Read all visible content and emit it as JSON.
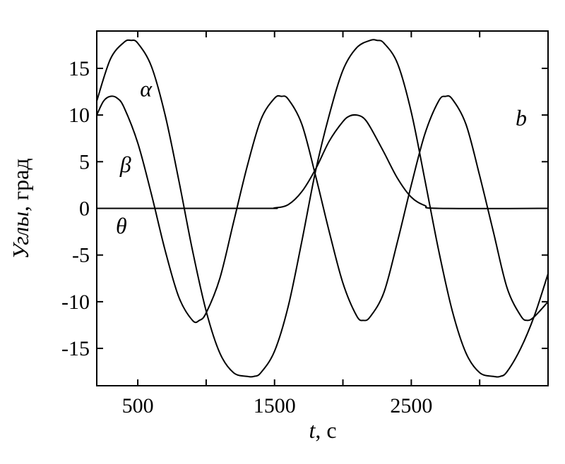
{
  "chart_data": {
    "type": "line",
    "title": "",
    "xlabel": {
      "variable": "t",
      "unit": ", с"
    },
    "ylabel": {
      "italic": "Углы",
      "unit": ", град"
    },
    "xlim": [
      200,
      3500
    ],
    "ylim": [
      -19,
      19
    ],
    "x_ticks": [
      {
        "value": 500,
        "label": "500"
      },
      {
        "value": 1500,
        "label": "1500"
      },
      {
        "value": 2500,
        "label": "2500"
      }
    ],
    "x_minor_ticks": [
      1000,
      2000,
      3000
    ],
    "y_ticks": [
      {
        "value": 15,
        "label": "15"
      },
      {
        "value": 10,
        "label": "10"
      },
      {
        "value": 5,
        "label": "5"
      },
      {
        "value": 0,
        "label": "0"
      },
      {
        "value": -5,
        "label": "-5"
      },
      {
        "value": -10,
        "label": "-10"
      },
      {
        "value": -15,
        "label": "-15"
      }
    ],
    "panel_label": "b",
    "grid": false,
    "series": [
      {
        "name": "α",
        "label_pos": {
          "x": 560,
          "y": 12
        },
        "points": [
          [
            200,
            11.5
          ],
          [
            300,
            16.0
          ],
          [
            400,
            17.8
          ],
          [
            450,
            18.0
          ],
          [
            500,
            17.7
          ],
          [
            600,
            15.2
          ],
          [
            700,
            10.0
          ],
          [
            800,
            3.0
          ],
          [
            900,
            -4.5
          ],
          [
            1000,
            -11.0
          ],
          [
            1100,
            -15.5
          ],
          [
            1200,
            -17.6
          ],
          [
            1300,
            -18.0
          ],
          [
            1350,
            -18.0
          ],
          [
            1400,
            -17.6
          ],
          [
            1500,
            -15.3
          ],
          [
            1600,
            -10.5
          ],
          [
            1700,
            -3.5
          ],
          [
            1800,
            4.0
          ],
          [
            1900,
            10.0
          ],
          [
            2000,
            14.8
          ],
          [
            2100,
            17.2
          ],
          [
            2200,
            18.0
          ],
          [
            2250,
            18.0
          ],
          [
            2300,
            17.7
          ],
          [
            2400,
            15.5
          ],
          [
            2500,
            10.3
          ],
          [
            2600,
            3.0
          ],
          [
            2700,
            -4.5
          ],
          [
            2800,
            -11.0
          ],
          [
            2900,
            -15.5
          ],
          [
            3000,
            -17.6
          ],
          [
            3100,
            -18.0
          ],
          [
            3150,
            -18.0
          ],
          [
            3200,
            -17.5
          ],
          [
            3300,
            -15.0
          ],
          [
            3400,
            -11.5
          ],
          [
            3500,
            -7.0
          ]
        ]
      },
      {
        "name": "β",
        "label_pos": {
          "x": 410,
          "y": 3.9
        },
        "points": [
          [
            200,
            10.0
          ],
          [
            250,
            11.5
          ],
          [
            300,
            12.0
          ],
          [
            350,
            11.8
          ],
          [
            400,
            10.8
          ],
          [
            500,
            7.0
          ],
          [
            600,
            1.5
          ],
          [
            700,
            -4.5
          ],
          [
            800,
            -9.5
          ],
          [
            900,
            -12.0
          ],
          [
            950,
            -12.0
          ],
          [
            1000,
            -11.2
          ],
          [
            1100,
            -7.5
          ],
          [
            1200,
            -1.5
          ],
          [
            1300,
            4.5
          ],
          [
            1400,
            9.5
          ],
          [
            1500,
            11.8
          ],
          [
            1550,
            12.0
          ],
          [
            1600,
            11.7
          ],
          [
            1700,
            9.0
          ],
          [
            1800,
            3.5
          ],
          [
            1900,
            -2.5
          ],
          [
            2000,
            -8.0
          ],
          [
            2100,
            -11.5
          ],
          [
            2150,
            -12.0
          ],
          [
            2200,
            -11.6
          ],
          [
            2300,
            -9.0
          ],
          [
            2400,
            -3.5
          ],
          [
            2500,
            2.5
          ],
          [
            2600,
            8.0
          ],
          [
            2700,
            11.5
          ],
          [
            2750,
            12.0
          ],
          [
            2800,
            11.7
          ],
          [
            2900,
            9.0
          ],
          [
            3000,
            3.5
          ],
          [
            3100,
            -2.5
          ],
          [
            3200,
            -8.5
          ],
          [
            3300,
            -11.5
          ],
          [
            3350,
            -12.0
          ],
          [
            3400,
            -11.6
          ],
          [
            3500,
            -10.0
          ]
        ]
      },
      {
        "name": "θ",
        "label_pos": {
          "x": 380,
          "y": -2.7
        },
        "points": [
          [
            200,
            0.0
          ],
          [
            1400,
            0.0
          ],
          [
            1500,
            0.05
          ],
          [
            1600,
            0.4
          ],
          [
            1700,
            1.8
          ],
          [
            1800,
            4.2
          ],
          [
            1900,
            7.2
          ],
          [
            2000,
            9.3
          ],
          [
            2050,
            9.9
          ],
          [
            2100,
            10.0
          ],
          [
            2150,
            9.7
          ],
          [
            2200,
            8.7
          ],
          [
            2300,
            6.0
          ],
          [
            2400,
            3.2
          ],
          [
            2500,
            1.2
          ],
          [
            2600,
            0.3
          ],
          [
            2700,
            0.0
          ],
          [
            3500,
            0.0
          ]
        ]
      }
    ]
  }
}
